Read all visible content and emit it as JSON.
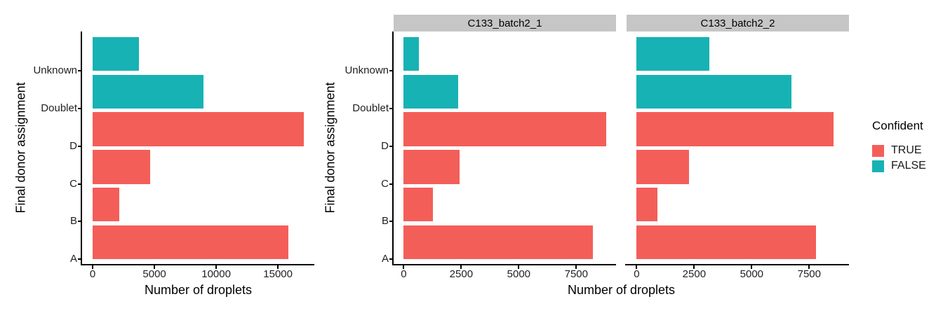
{
  "colors": {
    "confident_true": "#F45E59",
    "confident_false": "#17B2B4",
    "strip_background": "#C6C6C6",
    "axis_line": "#000000",
    "tick_text": "#1F1F1F",
    "title_text": "#000000"
  },
  "legend": {
    "title": "Confident",
    "position": "right",
    "entries": [
      {
        "label": "TRUE",
        "color": "#F45E59"
      },
      {
        "label": "FALSE",
        "color": "#17B2B4"
      }
    ]
  },
  "chart_data": [
    {
      "type": "bar",
      "orientation": "horizontal",
      "facet_label": null,
      "xlabel": "Number of droplets",
      "ylabel": "Final donor assignment",
      "categories_top_to_bottom": [
        "Unknown",
        "Doublet",
        "D",
        "C",
        "B",
        "A"
      ],
      "series": [
        {
          "category": "Unknown",
          "value": 3760,
          "confident": false
        },
        {
          "category": "Doublet",
          "value": 8950,
          "confident": false
        },
        {
          "category": "D",
          "value": 17090,
          "confident": true
        },
        {
          "category": "C",
          "value": 4670,
          "confident": true
        },
        {
          "category": "B",
          "value": 2130,
          "confident": true
        },
        {
          "category": "A",
          "value": 15860,
          "confident": true
        }
      ],
      "x_ticks": [
        0,
        5000,
        10000,
        15000
      ],
      "xlim_data": [
        0,
        17090
      ],
      "expansion_mult": 0.05,
      "grid": false,
      "panel_background": "#FFFFFF"
    },
    {
      "type": "bar",
      "orientation": "horizontal",
      "facet_label": "C133_batch2_1",
      "xlabel": "Number of droplets",
      "ylabel": "Final donor assignment",
      "categories_top_to_bottom": [
        "Unknown",
        "Doublet",
        "D",
        "C",
        "B",
        "A"
      ],
      "series": [
        {
          "category": "Unknown",
          "value": 650,
          "confident": false
        },
        {
          "category": "Doublet",
          "value": 2380,
          "confident": false
        },
        {
          "category": "D",
          "value": 8790,
          "confident": true
        },
        {
          "category": "C",
          "value": 2440,
          "confident": true
        },
        {
          "category": "B",
          "value": 1280,
          "confident": true
        },
        {
          "category": "A",
          "value": 8230,
          "confident": true
        }
      ],
      "x_ticks": [
        0,
        2500,
        5000,
        7500
      ],
      "xlim_data": [
        0,
        8790
      ],
      "expansion_mult": 0.05,
      "grid": false,
      "panel_background": "#FFFFFF"
    },
    {
      "type": "bar",
      "orientation": "horizontal",
      "facet_label": "C133_batch2_2",
      "xlabel": "Number of droplets",
      "ylabel": "Final donor assignment",
      "categories_top_to_bottom": [
        "Unknown",
        "Doublet",
        "D",
        "C",
        "B",
        "A"
      ],
      "series": [
        {
          "category": "Unknown",
          "value": 3150,
          "confident": false
        },
        {
          "category": "Doublet",
          "value": 6740,
          "confident": false
        },
        {
          "category": "D",
          "value": 8560,
          "confident": true
        },
        {
          "category": "C",
          "value": 2280,
          "confident": true
        },
        {
          "category": "B",
          "value": 890,
          "confident": true
        },
        {
          "category": "A",
          "value": 7810,
          "confident": true
        }
      ],
      "x_ticks": [
        0,
        2500,
        5000,
        7500
      ],
      "xlim_data": [
        0,
        8790
      ],
      "expansion_mult": 0.05,
      "grid": false,
      "panel_background": "#FFFFFF"
    }
  ]
}
